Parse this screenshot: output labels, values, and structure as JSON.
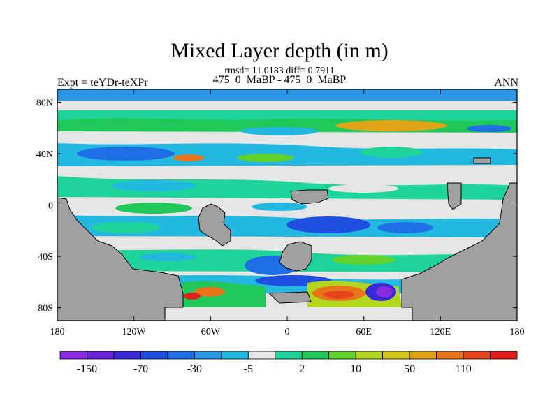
{
  "chart_data": {
    "type": "heatmap",
    "title": "Mixed Layer depth (in m)",
    "stats_line": "rmsd= 11.0183 diff= 0.7911",
    "subtitle": "475_0_MaBP - 475_0_MaBP",
    "left_label": "Expt = teYDr-teXPr",
    "right_label": "ANN",
    "x_axis": {
      "range": [
        -180,
        180
      ],
      "ticks": [
        -180,
        -120,
        -60,
        0,
        60,
        120,
        180
      ],
      "tick_labels": [
        "180",
        "120W",
        "60W",
        "0",
        "60E",
        "120E",
        "180"
      ]
    },
    "y_axis": {
      "range": [
        -90,
        90
      ],
      "ticks": [
        80,
        40,
        0,
        -40,
        -80
      ],
      "tick_labels": [
        "80N",
        "40N",
        "0",
        "40S",
        "80S"
      ]
    },
    "colorbar": {
      "colors": [
        "#8a2be2",
        "#6a1fd9",
        "#3a2ad6",
        "#1f4fe0",
        "#1e6fe6",
        "#2a96e4",
        "#22b8e0",
        "#e6e6e6",
        "#1fd49a",
        "#20c85a",
        "#62d12a",
        "#b3d61d",
        "#d6c81a",
        "#e2a417",
        "#e8741a",
        "#e8451f",
        "#e21d1d"
      ],
      "labels": [
        "-150",
        "-70",
        "-30",
        "-5",
        "2",
        "10",
        "50",
        "110"
      ]
    },
    "field_description": "Difference in annual mean mixed layer depth (m) on a global lat-lon grid; land masked in gray"
  }
}
